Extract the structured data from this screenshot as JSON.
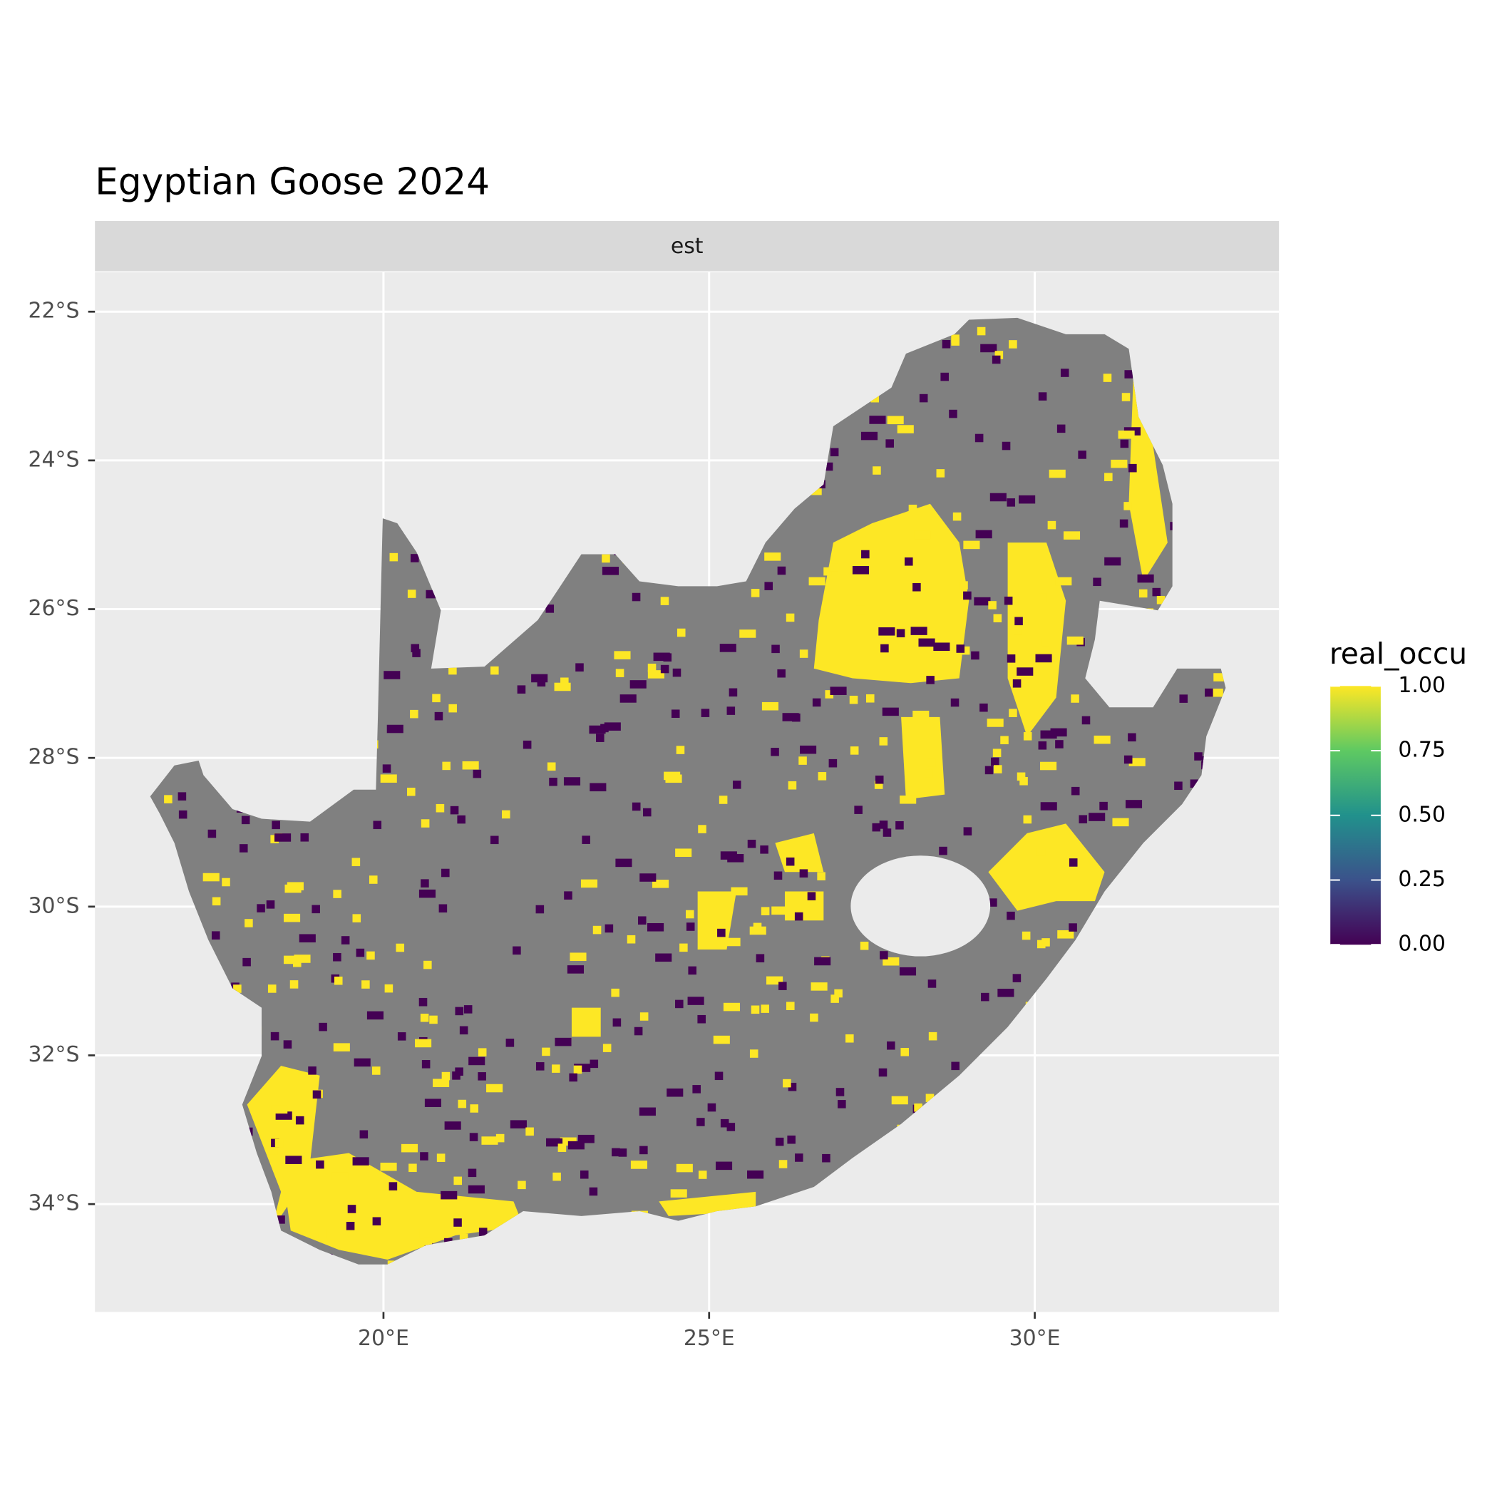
{
  "chart_data": {
    "type": "raster-map",
    "title": "Egyptian Goose 2024",
    "facet_label": "est",
    "xlim": [
      15.57,
      33.75
    ],
    "ylim": [
      -35.45,
      -21.47
    ],
    "xticks": [
      {
        "value": 20,
        "label": "20°E"
      },
      {
        "value": 25,
        "label": "25°E"
      },
      {
        "value": 30,
        "label": "30°E"
      }
    ],
    "yticks": [
      {
        "value": -22,
        "label": "22°S"
      },
      {
        "value": -24,
        "label": "24°S"
      },
      {
        "value": -26,
        "label": "26°S"
      },
      {
        "value": -28,
        "label": "28°S"
      },
      {
        "value": -30,
        "label": "30°S"
      },
      {
        "value": -32,
        "label": "32°S"
      },
      {
        "value": -34,
        "label": "34°S"
      }
    ],
    "grid": true,
    "na_color": "#808080",
    "legend": {
      "title": "real_occu",
      "lim": [
        0,
        1
      ],
      "ticks": [
        {
          "value": 0,
          "label": "0.00"
        },
        {
          "value": 0.25,
          "label": "0.25"
        },
        {
          "value": 0.5,
          "label": "0.50"
        },
        {
          "value": 0.75,
          "label": "0.75"
        },
        {
          "value": 1,
          "label": "1.00"
        }
      ],
      "colors": [
        "#440154",
        "#3b528b",
        "#21918c",
        "#5ec962",
        "#fde725"
      ]
    }
  }
}
